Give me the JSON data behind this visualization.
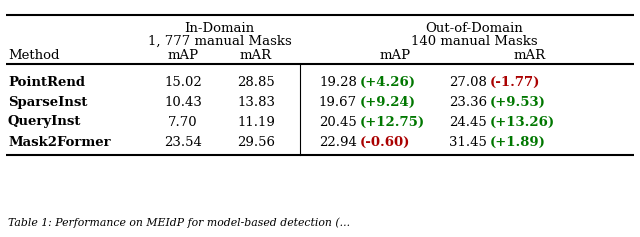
{
  "background_color": "#ffffff",
  "header1": "In-Domain",
  "header2": "Out-of-Domain",
  "subheader1": "1, 777 manual Masks",
  "subheader2": "140 manual Masks",
  "methods": [
    "PointRend",
    "SparseInst",
    "QueryInst",
    "Mask2Former"
  ],
  "in_domain_mAP": [
    "15.02",
    "10.43",
    "7.70",
    "23.54"
  ],
  "in_domain_mAR": [
    "28.85",
    "13.83",
    "11.19",
    "29.56"
  ],
  "out_domain_mAP": [
    "19.28",
    "19.67",
    "20.45",
    "22.94"
  ],
  "out_domain_mAR": [
    "27.08",
    "23.36",
    "24.45",
    "31.45"
  ],
  "delta_mAP": [
    "+4.26",
    "+9.24",
    "+12.75",
    "-0.60"
  ],
  "delta_mAR": [
    "-1.77",
    "+9.53",
    "+13.26",
    "+1.89"
  ],
  "delta_mAP_colors": [
    "#007700",
    "#007700",
    "#007700",
    "#aa0000"
  ],
  "delta_mAR_colors": [
    "#aa0000",
    "#007700",
    "#007700",
    "#007700"
  ],
  "footer": "Table 1: Performance on MEIdP for model-based detection (...",
  "fs": 9.5,
  "fs_footer": 7.8
}
